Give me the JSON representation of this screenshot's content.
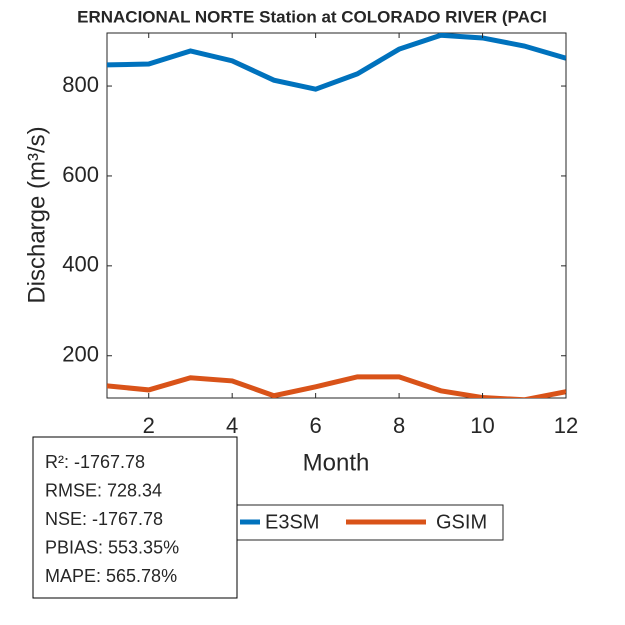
{
  "chart_data": {
    "type": "line",
    "title": "ERNACIONAL NORTE  Station at  COLORADO RIVER (PACI",
    "x_label": "Month",
    "y_label": "Discharge (m³/s)",
    "x": [
      1,
      2,
      3,
      4,
      5,
      6,
      7,
      8,
      9,
      10,
      11,
      12
    ],
    "series": [
      {
        "name": "E3SM",
        "color": "#0072bd",
        "values": [
          847,
          849,
          878,
          856,
          813,
          793,
          827,
          882,
          913,
          907,
          889,
          862
        ]
      },
      {
        "name": "GSIM",
        "color": "#d95319",
        "values": [
          133,
          124,
          151,
          144,
          111,
          131,
          153,
          153,
          122,
          107,
          102,
          120
        ]
      }
    ],
    "xlim": [
      1,
      12
    ],
    "xticks": [
      2,
      4,
      6,
      8,
      10,
      12
    ],
    "ylim": [
      106,
      918
    ],
    "yticks": [
      200,
      400,
      600,
      800
    ],
    "stats": [
      "R²: -1767.78",
      "RMSE: 728.34",
      "NSE: -1767.78",
      "PBIAS: 553.35%",
      "MAPE: 565.78%"
    ]
  }
}
